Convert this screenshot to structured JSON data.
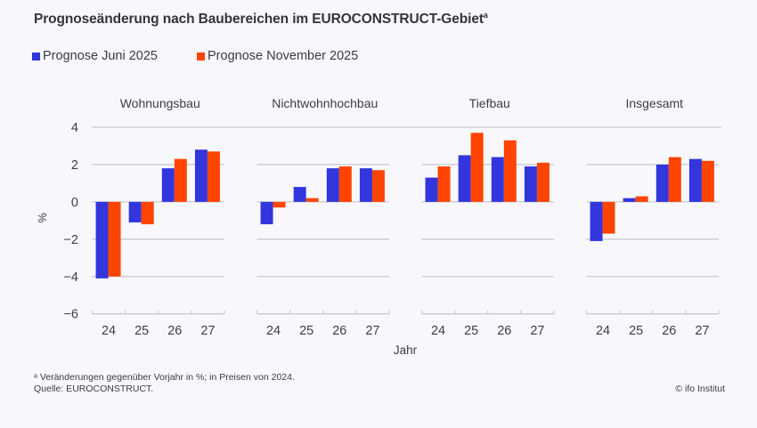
{
  "title": "Prognoseänderung nach Baubereichen im EUROCONSTRUCT-Gebiet",
  "title_footnote_marker": "a",
  "legend": [
    {
      "label": "Prognose Juni 2025",
      "color": "#3236dc"
    },
    {
      "label": "Prognose November 2025",
      "color": "#ff4400"
    }
  ],
  "footnote": "ᵃ Veränderungen gegenüber Vorjahr in %; in Preisen von 2024.",
  "source": "Quelle: EUROCONSTRUCT.",
  "credit": "© ifo Institut",
  "chart_data": {
    "type": "bar",
    "title": "Prognoseänderung nach Baubereichen im EUROCONSTRUCT-Gebiet",
    "xlabel": "Jahr",
    "ylabel": "%",
    "ylim": [
      -6,
      4
    ],
    "yticks": [
      4,
      2,
      0,
      -2,
      -4,
      -6
    ],
    "ytick_labels": [
      "4",
      "2",
      "0",
      "−2",
      "−4",
      "−6"
    ],
    "grid": true,
    "legend_position": "top-left",
    "categories": [
      "24",
      "25",
      "26",
      "27"
    ],
    "series_names": [
      "Prognose Juni 2025",
      "Prognose November 2025"
    ],
    "series_colors": [
      "#3236dc",
      "#ff4400"
    ],
    "panels": [
      {
        "name": "Wohnungsbau",
        "series": [
          {
            "name": "Prognose Juni 2025",
            "values": [
              -4.1,
              -1.1,
              1.8,
              2.8
            ]
          },
          {
            "name": "Prognose November 2025",
            "values": [
              -4.0,
              -1.2,
              2.3,
              2.7
            ]
          }
        ]
      },
      {
        "name": "Nichtwohnhochbau",
        "series": [
          {
            "name": "Prognose Juni 2025",
            "values": [
              -1.2,
              0.8,
              1.8,
              1.8
            ]
          },
          {
            "name": "Prognose November 2025",
            "values": [
              -0.3,
              0.2,
              1.9,
              1.7
            ]
          }
        ]
      },
      {
        "name": "Tiefbau",
        "series": [
          {
            "name": "Prognose Juni 2025",
            "values": [
              1.3,
              2.5,
              2.4,
              1.9
            ]
          },
          {
            "name": "Prognose November 2025",
            "values": [
              1.9,
              3.7,
              3.3,
              2.1
            ]
          }
        ]
      },
      {
        "name": "Insgesamt",
        "series": [
          {
            "name": "Prognose Juni 2025",
            "values": [
              -2.1,
              0.2,
              2.0,
              2.3
            ]
          },
          {
            "name": "Prognose November 2025",
            "values": [
              -1.7,
              0.3,
              2.4,
              2.2
            ]
          }
        ]
      }
    ]
  }
}
